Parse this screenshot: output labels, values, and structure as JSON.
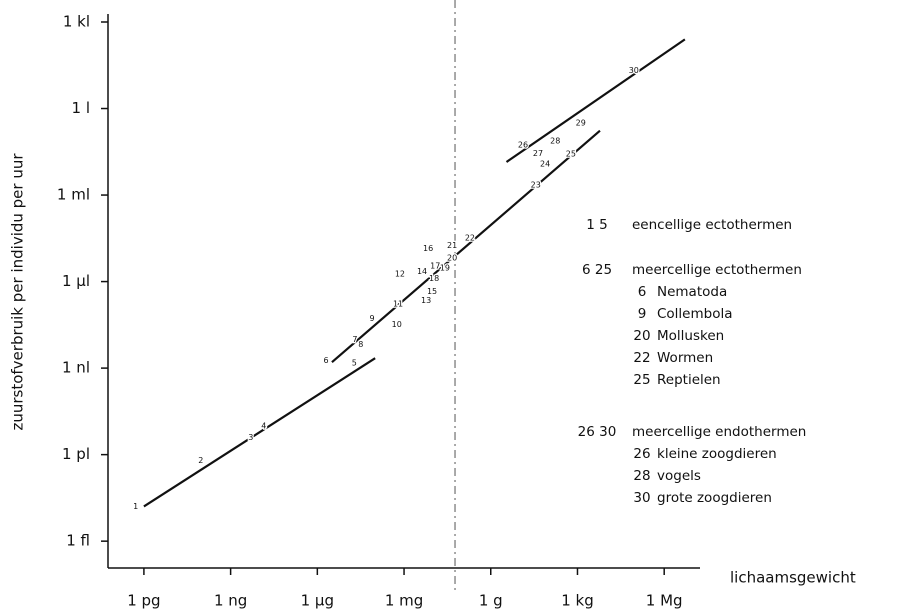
{
  "chart_data": {
    "type": "line",
    "y_label": "zuurstofverbruik per individu per uur",
    "x_label": "lichaamsgewicht",
    "log_x": true,
    "log_y": true,
    "xlim": [
      1e-13,
      100000000.0
    ],
    "ylim": [
      1e-16,
      1000.0
    ],
    "xticks": [
      {
        "value": 1e-12,
        "label": "1 pg"
      },
      {
        "value": 1e-09,
        "label": "1 ng"
      },
      {
        "value": 1e-06,
        "label": "1 µg"
      },
      {
        "value": 0.001,
        "label": "1 mg"
      },
      {
        "value": 1,
        "label": "1 g"
      },
      {
        "value": 1000,
        "label": "1 kg"
      },
      {
        "value": 1000000,
        "label": "1 Mg"
      }
    ],
    "yticks": [
      {
        "value": 1e-15,
        "label": "1 fl"
      },
      {
        "value": 1e-12,
        "label": "1 pl"
      },
      {
        "value": 1e-09,
        "label": "1 nl"
      },
      {
        "value": 1e-06,
        "label": "1 µl"
      },
      {
        "value": 0.001,
        "label": "1 ml"
      },
      {
        "value": 1,
        "label": "1 l"
      },
      {
        "value": 1000,
        "label": "1 kl"
      }
    ],
    "reference_x": 0.058,
    "series": [
      {
        "color": "#111111",
        "x": [
          1e-12,
          0.0001
        ],
        "values": [
          1.6e-14,
          2.2e-09
        ]
      },
      {
        "color": "#111111",
        "x": [
          3.2e-06,
          6000
        ],
        "values": [
          1.6e-09,
          0.17
        ]
      },
      {
        "color": "#111111",
        "x": [
          3.5,
          5200000
        ],
        "values": [
          0.014,
          250
        ]
      }
    ],
    "points": {
      "labels": [
        1,
        2,
        3,
        4,
        5,
        6,
        7,
        8,
        9,
        10,
        11,
        12,
        13,
        14,
        15,
        16,
        17,
        18,
        19,
        20,
        21,
        22,
        23,
        24,
        25,
        26,
        27,
        28,
        29,
        30
      ],
      "x": [
        5.2e-13,
        9.3e-11,
        5e-09,
        1.4e-08,
        1.9e-05,
        2e-06,
        2e-05,
        3.2e-05,
        7.8e-05,
        0.00056,
        0.00062,
        0.00072,
        0.0058,
        0.0042,
        0.0093,
        0.0068,
        0.012,
        0.011,
        0.026,
        0.046,
        0.046,
        0.19,
        36,
        76,
        590,
        13,
        43,
        170,
        1300,
        89000
      ],
      "y": [
        1.6e-14,
        6.2e-13,
        3.9e-12,
        1e-11,
        1.5e-09,
        1.8e-09,
        1e-08,
        6.6e-09,
        5.2e-08,
        3.2e-08,
        1.7e-07,
        1.8e-06,
        2.2e-07,
        2.2e-06,
        4.6e-07,
        1.4e-05,
        3.4e-06,
        1.3e-06,
        2.9e-06,
        6.5e-06,
        1.8e-05,
        3.2e-05,
        0.0022,
        0.012,
        0.026,
        0.054,
        0.028,
        0.074,
        0.31,
        21
      ]
    },
    "legend_groups": [
      {
        "range": "1 5",
        "label": "eencellige ectothermen",
        "items": []
      },
      {
        "range": "6 25",
        "label": "meercellige ectothermen",
        "items": [
          {
            "num": "6",
            "name": "Nematoda"
          },
          {
            "num": "9",
            "name": "Collembola"
          },
          {
            "num": "20",
            "name": "Mollusken"
          },
          {
            "num": "22",
            "name": "Wormen"
          },
          {
            "num": "25",
            "name": "Reptielen"
          }
        ]
      },
      {
        "range": "26 30",
        "label": "meercellige endothermen",
        "items": [
          {
            "num": "26",
            "name": "kleine zoogdieren"
          },
          {
            "num": "28",
            "name": "vogels"
          },
          {
            "num": "30",
            "name": "grote zoogdieren"
          }
        ]
      }
    ]
  }
}
